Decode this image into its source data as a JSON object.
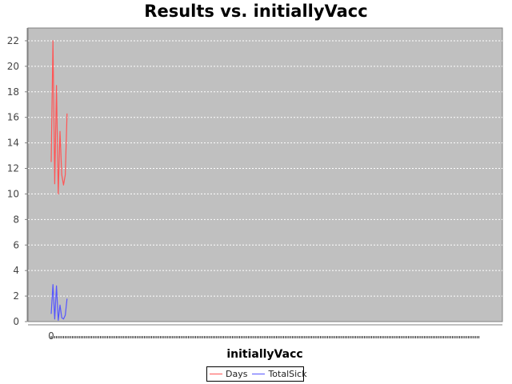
{
  "chart_data": {
    "type": "line",
    "title": "Results vs. initiallyVacc",
    "xlabel": "initiallyVacc",
    "ylabel": "",
    "ylim": [
      0,
      23
    ],
    "yticks": [
      0,
      2,
      4,
      6,
      8,
      10,
      12,
      14,
      16,
      18,
      20,
      22
    ],
    "xtick_labels": [
      "0"
    ],
    "grid": true,
    "legend_position": "bottom",
    "colors": {
      "plot_background": "#c0c0c0",
      "grid": "#ffffff"
    },
    "series": [
      {
        "name": "Days",
        "color": "#ff5555",
        "x": [
          0,
          1,
          2,
          3,
          4,
          5,
          6,
          7,
          8,
          9
        ],
        "y": [
          12.5,
          22,
          10.8,
          18.5,
          10,
          14.9,
          11.5,
          10.7,
          11.5,
          16.3
        ]
      },
      {
        "name": "TotalSick",
        "color": "#5555ff",
        "x": [
          0,
          1,
          2,
          3,
          4,
          5,
          6,
          7,
          8,
          9
        ],
        "y": [
          0.6,
          2.9,
          0.2,
          2.8,
          0.1,
          1.3,
          0.3,
          0.2,
          0.5,
          1.8
        ]
      }
    ]
  }
}
